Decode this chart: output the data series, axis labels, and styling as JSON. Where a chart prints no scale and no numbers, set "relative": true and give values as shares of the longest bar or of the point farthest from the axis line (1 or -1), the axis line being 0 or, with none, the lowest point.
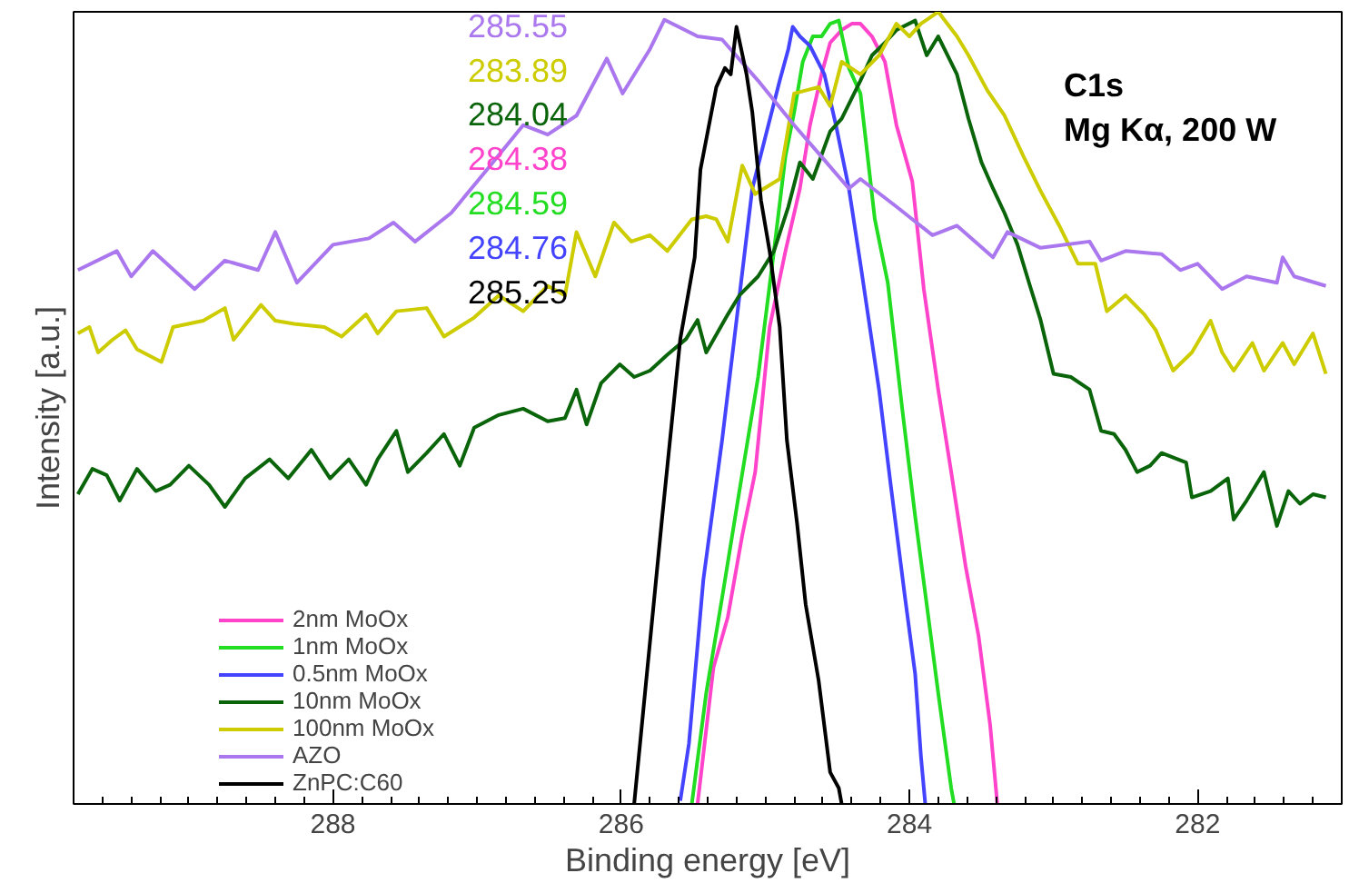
{
  "chart_data": {
    "type": "line",
    "relative": true,
    "xlabel": "Binding energy [eV]",
    "ylabel": "Intensity [a.u.]",
    "xlim": [
      289.8,
      281.0
    ],
    "xticks": [
      288,
      286,
      284,
      282
    ],
    "grid": false,
    "legend": "bottom left",
    "marker": "none",
    "line_style": "solid",
    "annotations": [
      "285.55",
      "283.89",
      "284.04",
      "284.38",
      "284.59",
      "284.76",
      "285.25",
      "C1s",
      "Mg Kα, 200 W"
    ],
    "series": [
      {
        "name": "2nm MoOx",
        "color": "#ff44cc",
        "x": [
          285.47,
          285.36,
          285.26,
          285.16,
          285.07,
          284.97,
          284.86,
          284.76,
          284.69,
          284.61,
          284.55,
          284.47,
          284.4,
          284.34,
          284.26,
          284.17,
          284.09,
          283.98,
          283.9,
          283.8,
          283.71,
          283.61,
          283.52,
          283.44,
          283.39
        ],
        "values": [
          0.0,
          0.172,
          0.236,
          0.339,
          0.419,
          0.602,
          0.698,
          0.777,
          0.857,
          0.921,
          0.961,
          0.977,
          0.985,
          0.985,
          0.969,
          0.937,
          0.857,
          0.786,
          0.65,
          0.523,
          0.419,
          0.3,
          0.212,
          0.1,
          0.0
        ]
      },
      {
        "name": "1nm MoOx",
        "color": "#22dd22",
        "x": [
          285.51,
          285.41,
          285.3,
          285.18,
          285.05,
          284.94,
          284.86,
          284.8,
          284.74,
          284.67,
          284.61,
          284.55,
          284.49,
          284.42,
          284.34,
          284.24,
          284.15,
          284.05,
          283.96,
          283.88,
          283.8,
          283.71,
          283.69
        ],
        "values": [
          0.0,
          0.14,
          0.26,
          0.395,
          0.539,
          0.698,
          0.818,
          0.873,
          0.937,
          0.969,
          0.969,
          0.985,
          0.989,
          0.929,
          0.897,
          0.738,
          0.658,
          0.499,
          0.363,
          0.252,
          0.14,
          0.02,
          0.0
        ]
      },
      {
        "name": "0.5nm MoOx",
        "color": "#4444ff",
        "x": [
          285.59,
          285.53,
          285.43,
          285.3,
          285.2,
          285.09,
          284.99,
          284.9,
          284.84,
          284.81,
          284.76,
          284.69,
          284.59,
          284.51,
          284.42,
          284.34,
          284.21,
          284.13,
          284.03,
          283.96,
          283.92,
          283.89
        ],
        "values": [
          0.004,
          0.076,
          0.283,
          0.459,
          0.61,
          0.777,
          0.849,
          0.913,
          0.953,
          0.981,
          0.969,
          0.957,
          0.921,
          0.857,
          0.777,
          0.682,
          0.522,
          0.403,
          0.26,
          0.164,
          0.06,
          0.0
        ]
      },
      {
        "name": "10nm MoOx",
        "color": "#0a640a",
        "x": [
          289.77,
          289.67,
          289.57,
          289.48,
          289.36,
          289.23,
          289.13,
          289.0,
          288.86,
          288.75,
          288.61,
          288.44,
          288.31,
          288.15,
          288.02,
          287.89,
          287.77,
          287.69,
          287.56,
          287.48,
          287.35,
          287.23,
          287.12,
          287.02,
          286.85,
          286.68,
          286.51,
          286.39,
          286.31,
          286.24,
          286.14,
          286.01,
          285.91,
          285.8,
          285.68,
          285.55,
          285.47,
          285.41,
          285.26,
          285.18,
          285.05,
          284.94,
          284.84,
          284.76,
          284.67,
          284.55,
          284.47,
          284.34,
          284.26,
          284.17,
          284.09,
          283.96,
          283.88,
          283.8,
          283.67,
          283.59,
          283.5,
          283.42,
          283.34,
          283.25,
          283.17,
          283.09,
          283.0,
          282.88,
          282.75,
          282.67,
          282.58,
          282.5,
          282.42,
          282.33,
          282.25,
          282.08,
          282.04,
          281.91,
          281.79,
          281.75,
          281.66,
          281.54,
          281.45,
          281.37,
          281.29,
          281.2,
          281.11
        ],
        "values": [
          0.391,
          0.423,
          0.415,
          0.383,
          0.423,
          0.395,
          0.403,
          0.427,
          0.403,
          0.375,
          0.411,
          0.435,
          0.411,
          0.447,
          0.411,
          0.435,
          0.403,
          0.435,
          0.471,
          0.419,
          0.443,
          0.467,
          0.427,
          0.475,
          0.491,
          0.499,
          0.483,
          0.487,
          0.523,
          0.479,
          0.531,
          0.555,
          0.539,
          0.547,
          0.567,
          0.587,
          0.611,
          0.57,
          0.618,
          0.642,
          0.666,
          0.698,
          0.754,
          0.81,
          0.789,
          0.849,
          0.865,
          0.913,
          0.945,
          0.961,
          0.977,
          0.989,
          0.945,
          0.969,
          0.921,
          0.865,
          0.81,
          0.777,
          0.746,
          0.706,
          0.658,
          0.611,
          0.543,
          0.539,
          0.523,
          0.471,
          0.467,
          0.447,
          0.419,
          0.427,
          0.443,
          0.431,
          0.387,
          0.395,
          0.411,
          0.359,
          0.383,
          0.419,
          0.351,
          0.395,
          0.379,
          0.391,
          0.387
        ]
      },
      {
        "name": "100nm MoOx",
        "color": "#cccc00",
        "x": [
          289.77,
          289.69,
          289.63,
          289.53,
          289.44,
          289.36,
          289.19,
          289.11,
          288.9,
          288.75,
          288.69,
          288.5,
          288.4,
          288.27,
          288.06,
          287.94,
          287.77,
          287.69,
          287.56,
          287.35,
          287.23,
          287.02,
          286.85,
          286.68,
          286.51,
          286.39,
          286.31,
          286.18,
          286.05,
          285.93,
          285.8,
          285.68,
          285.51,
          285.41,
          285.34,
          285.26,
          285.16,
          285.07,
          284.9,
          284.8,
          284.63,
          284.55,
          284.47,
          284.34,
          284.21,
          284.09,
          284.0,
          283.92,
          283.8,
          283.67,
          283.59,
          283.46,
          283.34,
          283.21,
          283.09,
          282.96,
          282.83,
          282.71,
          282.63,
          282.5,
          282.37,
          282.29,
          282.17,
          282.04,
          281.91,
          281.83,
          281.75,
          281.62,
          281.54,
          281.41,
          281.33,
          281.2,
          281.11
        ],
        "values": [
          0.594,
          0.602,
          0.57,
          0.586,
          0.598,
          0.574,
          0.558,
          0.602,
          0.61,
          0.626,
          0.586,
          0.63,
          0.61,
          0.606,
          0.602,
          0.59,
          0.618,
          0.594,
          0.622,
          0.626,
          0.59,
          0.614,
          0.642,
          0.622,
          0.654,
          0.642,
          0.722,
          0.666,
          0.734,
          0.71,
          0.718,
          0.698,
          0.738,
          0.742,
          0.738,
          0.71,
          0.806,
          0.77,
          0.789,
          0.897,
          0.905,
          0.881,
          0.937,
          0.921,
          0.945,
          0.985,
          0.969,
          0.985,
          1.0,
          0.969,
          0.945,
          0.901,
          0.869,
          0.818,
          0.774,
          0.73,
          0.682,
          0.682,
          0.622,
          0.642,
          0.618,
          0.598,
          0.547,
          0.57,
          0.61,
          0.57,
          0.547,
          0.582,
          0.547,
          0.582,
          0.555,
          0.594,
          0.543
        ]
      },
      {
        "name": "AZO",
        "color": "#aa77ee",
        "x": [
          289.77,
          289.5,
          289.4,
          289.25,
          288.96,
          288.75,
          288.52,
          288.4,
          288.25,
          288.0,
          287.75,
          287.58,
          287.43,
          287.18,
          286.93,
          286.68,
          286.51,
          286.31,
          286.1,
          285.99,
          285.8,
          285.7,
          285.47,
          285.3,
          285.05,
          284.8,
          284.59,
          284.42,
          284.34,
          284.09,
          283.84,
          283.67,
          283.42,
          283.32,
          283.09,
          282.75,
          282.67,
          282.5,
          282.25,
          282.12,
          282.0,
          281.83,
          281.66,
          281.45,
          281.41,
          281.33,
          281.11
        ],
        "values": [
          0.674,
          0.698,
          0.666,
          0.698,
          0.65,
          0.686,
          0.674,
          0.722,
          0.658,
          0.706,
          0.714,
          0.734,
          0.71,
          0.746,
          0.801,
          0.857,
          0.845,
          0.869,
          0.941,
          0.897,
          0.953,
          0.99,
          0.969,
          0.965,
          0.913,
          0.857,
          0.813,
          0.777,
          0.789,
          0.754,
          0.718,
          0.73,
          0.69,
          0.722,
          0.702,
          0.71,
          0.686,
          0.698,
          0.694,
          0.674,
          0.682,
          0.65,
          0.666,
          0.658,
          0.69,
          0.666,
          0.654
        ]
      },
      {
        "name": "ZnPC:C60",
        "color": "#000000",
        "x": [
          285.91,
          285.72,
          285.59,
          285.49,
          285.45,
          285.34,
          285.28,
          285.24,
          285.2,
          285.13,
          285.09,
          285.03,
          284.97,
          284.9,
          284.85,
          284.78,
          284.72,
          284.63,
          284.55,
          284.49,
          284.47
        ],
        "values": [
          0.0,
          0.354,
          0.587,
          0.69,
          0.801,
          0.905,
          0.929,
          0.921,
          0.981,
          0.921,
          0.873,
          0.762,
          0.698,
          0.602,
          0.459,
          0.355,
          0.252,
          0.156,
          0.04,
          0.02,
          0.0
        ]
      }
    ]
  }
}
